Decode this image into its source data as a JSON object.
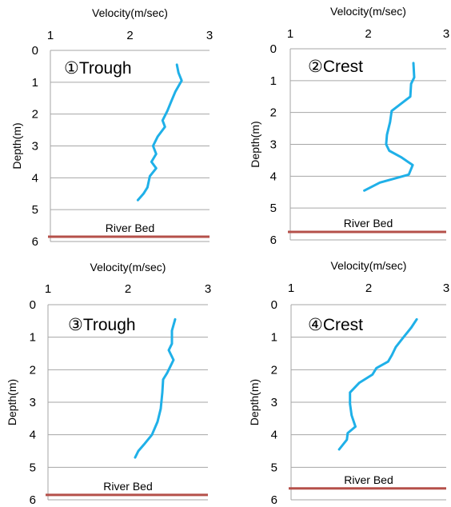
{
  "colors": {
    "line": "#1fb0e8",
    "river_bed": "#b5504a",
    "grid": "#a6a6a6",
    "text": "#000000"
  },
  "chart_data": [
    {
      "type": "line",
      "panel_label": "①Trough",
      "xlabel": "Velocity(m/sec)",
      "ylabel": "Depth(m)",
      "xlim": [
        1,
        3
      ],
      "ylim": [
        0,
        6
      ],
      "x_ticks": [
        "1",
        "2",
        "3"
      ],
      "y_ticks": [
        "0",
        "1",
        "2",
        "3",
        "4",
        "5",
        "6"
      ],
      "grid": "horizontal",
      "reference_line": {
        "label": "River Bed",
        "depth": 5.85
      },
      "series": [
        {
          "x": [
            2.59,
            2.61,
            2.65,
            2.57,
            2.52,
            2.47,
            2.41,
            2.44,
            2.35,
            2.29,
            2.33,
            2.27,
            2.33,
            2.25,
            2.22,
            2.17,
            2.1
          ],
          "y": [
            0.45,
            0.7,
            0.95,
            1.3,
            1.6,
            1.9,
            2.2,
            2.4,
            2.7,
            3.0,
            3.25,
            3.5,
            3.7,
            3.95,
            4.3,
            4.5,
            4.7
          ]
        }
      ]
    },
    {
      "type": "line",
      "panel_label": "②Crest",
      "xlabel": "Velocity(m/sec)",
      "ylabel": "Depth(m)",
      "xlim": [
        1,
        3
      ],
      "ylim": [
        0,
        6
      ],
      "x_ticks": [
        "1",
        "2",
        "3"
      ],
      "y_ticks": [
        "0",
        "1",
        "2",
        "3",
        "4",
        "5",
        "6"
      ],
      "grid": "horizontal",
      "reference_line": {
        "label": "River Bed",
        "depth": 5.75
      },
      "series": [
        {
          "x": [
            2.58,
            2.59,
            2.55,
            2.54,
            2.3,
            2.28,
            2.24,
            2.23,
            2.27,
            2.42,
            2.57,
            2.52,
            2.15,
            1.95
          ],
          "y": [
            0.45,
            0.9,
            1.1,
            1.5,
            1.95,
            2.3,
            2.7,
            3.0,
            3.2,
            3.4,
            3.65,
            3.95,
            4.2,
            4.45
          ]
        }
      ]
    },
    {
      "type": "line",
      "panel_label": "③Trough",
      "xlabel": "Velocity(m/sec)",
      "ylabel": "Depth(m)",
      "xlim": [
        1,
        3
      ],
      "ylim": [
        0,
        6
      ],
      "x_ticks": [
        "1",
        "2",
        "3"
      ],
      "y_ticks": [
        "0",
        "1",
        "2",
        "3",
        "4",
        "5",
        "6"
      ],
      "grid": "horizontal",
      "reference_line": {
        "label": "River Bed",
        "depth": 5.85
      },
      "series": [
        {
          "x": [
            2.59,
            2.55,
            2.55,
            2.51,
            2.57,
            2.53,
            2.49,
            2.44,
            2.43,
            2.41,
            2.37,
            2.3,
            2.2,
            2.13,
            2.09
          ],
          "y": [
            0.45,
            0.8,
            1.2,
            1.4,
            1.7,
            1.9,
            2.1,
            2.3,
            2.7,
            3.2,
            3.6,
            4.0,
            4.3,
            4.5,
            4.7
          ]
        }
      ]
    },
    {
      "type": "line",
      "panel_label": "④Crest",
      "xlabel": "Velocity(m/sec)",
      "ylabel": "Depth(m)",
      "xlim": [
        1,
        3
      ],
      "ylim": [
        0,
        6
      ],
      "x_ticks": [
        "1",
        "2",
        "3"
      ],
      "y_ticks": [
        "0",
        "1",
        "2",
        "3",
        "4",
        "5",
        "6"
      ],
      "grid": "horizontal",
      "reference_line": {
        "label": "River Bed",
        "depth": 5.65
      },
      "series": [
        {
          "x": [
            2.62,
            2.55,
            2.45,
            2.35,
            2.3,
            2.25,
            2.1,
            2.05,
            1.88,
            1.76,
            1.76,
            1.78,
            1.83,
            1.73,
            1.72,
            1.62
          ],
          "y": [
            0.45,
            0.7,
            1.0,
            1.3,
            1.55,
            1.75,
            1.95,
            2.15,
            2.4,
            2.7,
            3.05,
            3.4,
            3.75,
            3.95,
            4.15,
            4.45
          ]
        }
      ]
    }
  ]
}
